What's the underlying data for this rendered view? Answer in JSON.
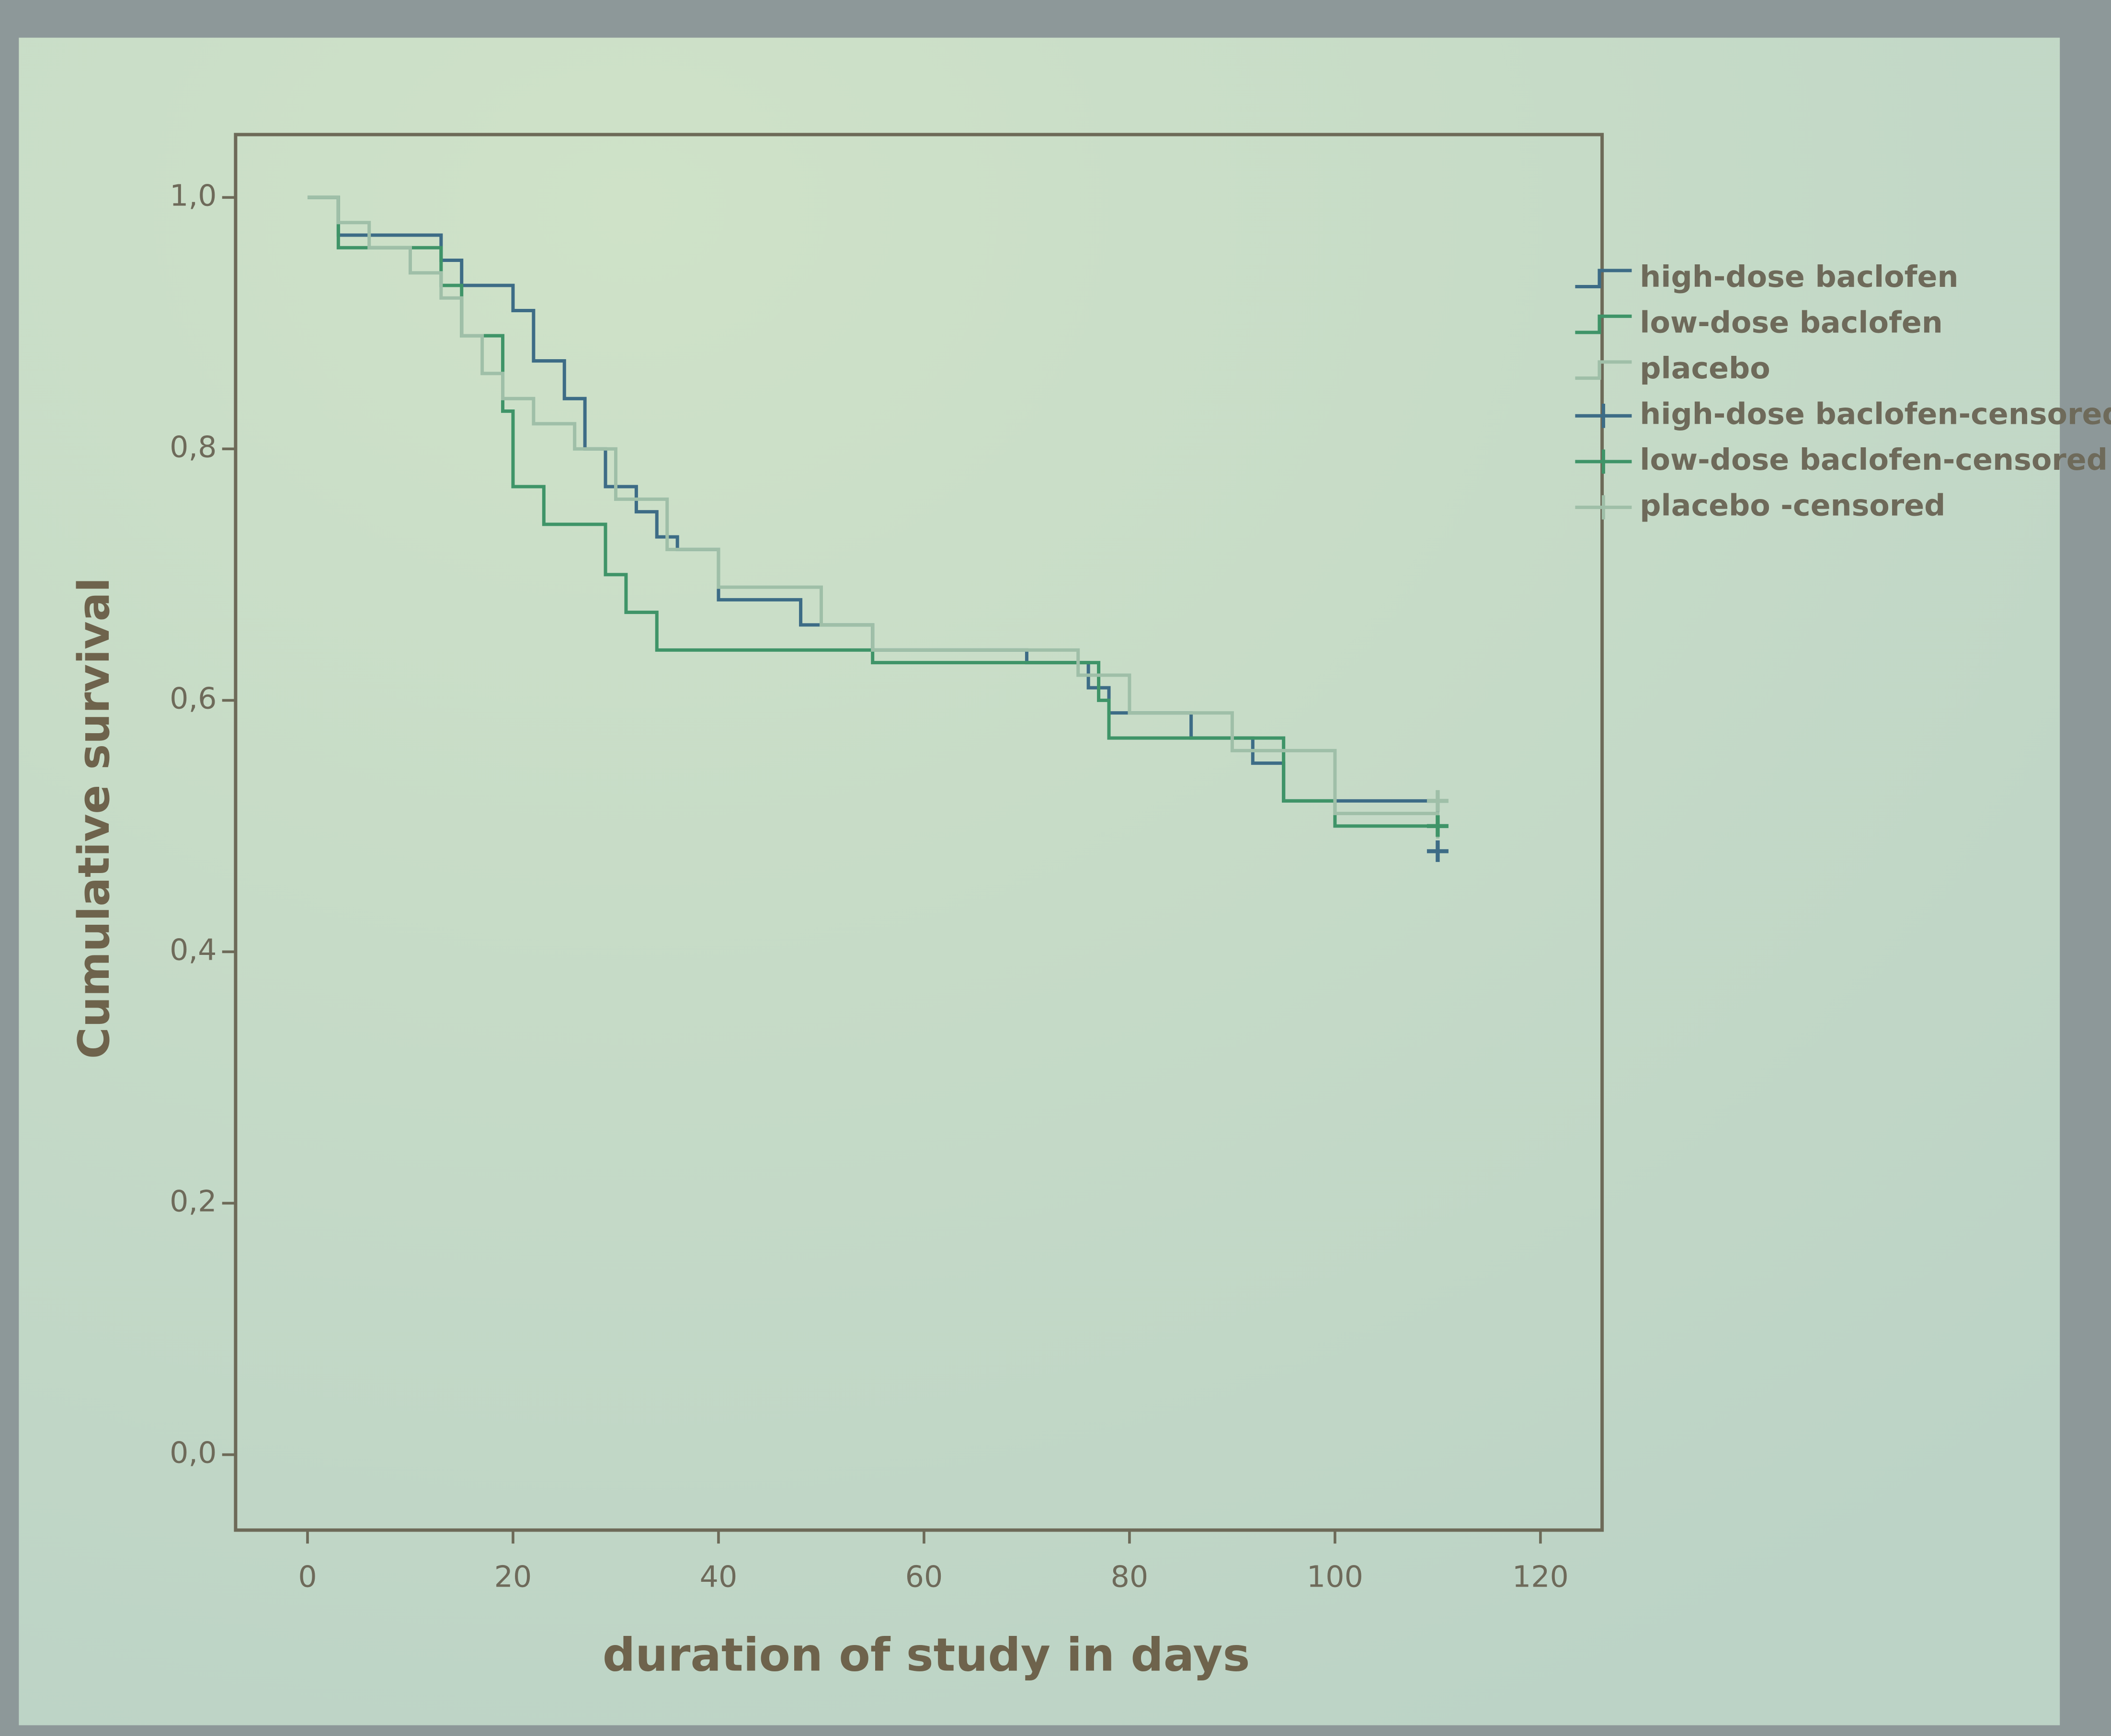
{
  "chart_data": {
    "type": "line",
    "drawstyle": "steps-post",
    "xlabel": "duration of study in days",
    "ylabel": "Cumulative survival",
    "xlim": [
      -7,
      126
    ],
    "ylim": [
      -0.06,
      1.05
    ],
    "xticks": [
      0,
      20,
      40,
      60,
      80,
      100,
      120
    ],
    "yticks": [
      {
        "value": 0,
        "label": "0,0"
      },
      {
        "value": 0.2,
        "label": "0,2"
      },
      {
        "value": 0.4,
        "label": "0,4"
      },
      {
        "value": 0.6,
        "label": "0,6"
      },
      {
        "value": 0.8,
        "label": "0,8"
      },
      {
        "value": 1,
        "label": "1,0"
      }
    ],
    "grid": false,
    "legend": "right",
    "series": [
      {
        "name": "high-dose baclofen",
        "color": "#3d6c86",
        "style": "step",
        "x": [
          0,
          3,
          13,
          15,
          20,
          22,
          25,
          27,
          29,
          32,
          34,
          36,
          40,
          48,
          55,
          70,
          76,
          78,
          86,
          92,
          95,
          110
        ],
        "values": [
          1.0,
          0.97,
          0.95,
          0.93,
          0.91,
          0.87,
          0.84,
          0.8,
          0.77,
          0.75,
          0.73,
          0.72,
          0.68,
          0.66,
          0.64,
          0.63,
          0.61,
          0.59,
          0.57,
          0.55,
          0.52,
          0.51
        ]
      },
      {
        "name": "low-dose baclofen",
        "color": "#3f9468",
        "style": "step",
        "x": [
          0,
          3,
          13,
          15,
          19,
          20,
          23,
          29,
          31,
          34,
          55,
          77,
          78,
          95,
          100,
          110
        ],
        "values": [
          1.0,
          0.96,
          0.93,
          0.89,
          0.83,
          0.77,
          0.74,
          0.7,
          0.67,
          0.64,
          0.63,
          0.6,
          0.57,
          0.52,
          0.5,
          0.5
        ]
      },
      {
        "name": "placebo",
        "color": "#9fbfa8",
        "style": "step",
        "x": [
          0,
          3,
          6,
          10,
          13,
          15,
          17,
          19,
          22,
          26,
          30,
          35,
          40,
          50,
          55,
          75,
          80,
          90,
          100,
          110
        ],
        "values": [
          1.0,
          0.98,
          0.96,
          0.94,
          0.92,
          0.89,
          0.86,
          0.84,
          0.82,
          0.8,
          0.76,
          0.72,
          0.69,
          0.66,
          0.64,
          0.62,
          0.59,
          0.56,
          0.51,
          0.49
        ]
      },
      {
        "name": "high-dose baclofen-censored",
        "color": "#3d6c86",
        "style": "marker",
        "x": [
          110
        ],
        "values": [
          0.48
        ]
      },
      {
        "name": "low-dose baclofen-censored",
        "color": "#3f9468",
        "style": "marker",
        "x": [
          110
        ],
        "values": [
          0.5
        ]
      },
      {
        "name": "placebo -censored",
        "color": "#9fbfa8",
        "style": "marker",
        "x": [
          110
        ],
        "values": [
          0.52
        ]
      }
    ]
  }
}
